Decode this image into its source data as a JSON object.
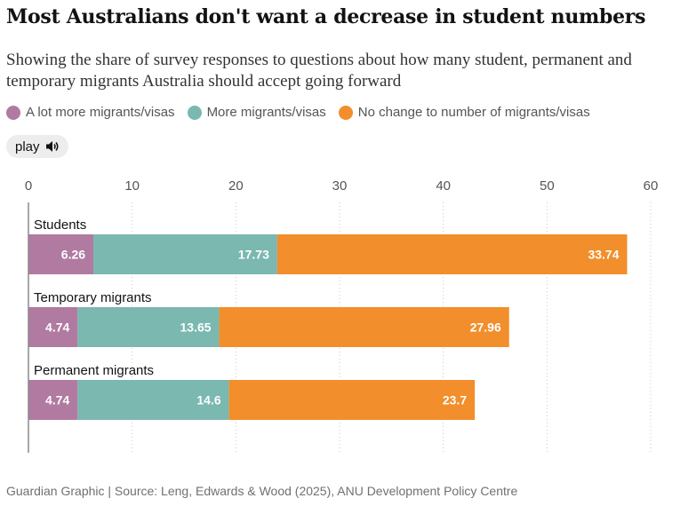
{
  "title": "Most Australians don't want a decrease in student numbers",
  "subtitle": "Showing the share of survey responses to questions about how many student, permanent and temporary migrants Australia should accept going forward",
  "legend": [
    {
      "label": "A lot more migrants/visas",
      "color": "#b07aa1"
    },
    {
      "label": "More migrants/visas",
      "color": "#7ab8b0"
    },
    {
      "label": "No change to number of migrants/visas",
      "color": "#f28e2b"
    }
  ],
  "play": {
    "label": "play",
    "icon": "speaker-icon"
  },
  "source": "Guardian Graphic | Source: Leng, Edwards & Wood (2025), ANU Development Policy Centre",
  "chart_data": {
    "type": "bar",
    "orientation": "horizontal",
    "stacked": true,
    "categories": [
      "Students",
      "Temporary migrants",
      "Permanent migrants"
    ],
    "series": [
      {
        "name": "A lot more migrants/visas",
        "color": "#b07aa1",
        "values": [
          6.26,
          4.74,
          4.74
        ]
      },
      {
        "name": "More migrants/visas",
        "color": "#7ab8b0",
        "values": [
          17.73,
          13.65,
          14.6
        ]
      },
      {
        "name": "No change to number of migrants/visas",
        "color": "#f28e2b",
        "values": [
          33.74,
          27.96,
          23.7
        ]
      }
    ],
    "xlim": [
      0,
      60
    ],
    "xticks": [
      0,
      10,
      20,
      30,
      40,
      50,
      60
    ],
    "grid": true,
    "legend_position": "top-left"
  }
}
